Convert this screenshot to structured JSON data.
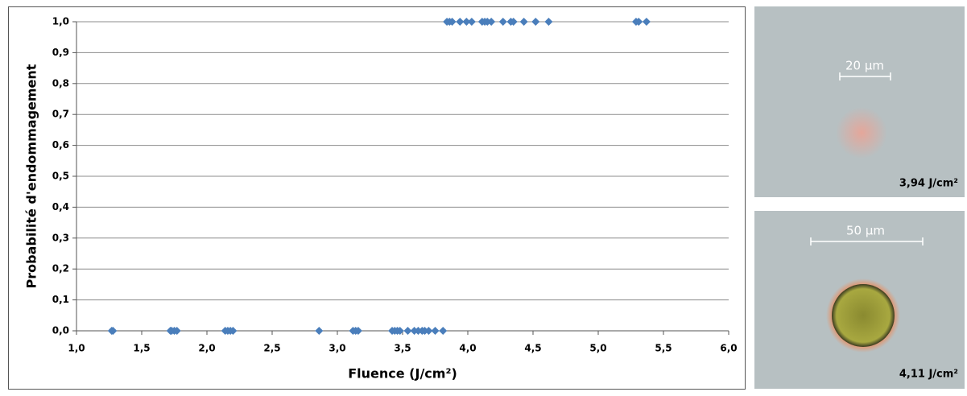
{
  "chart_data": {
    "type": "scatter",
    "x_label": "Fluence (J/cm²)",
    "y_label": "Probabilité d'endommagement",
    "x": [
      1.27,
      1.28,
      1.72,
      1.73,
      1.75,
      1.77,
      2.14,
      2.16,
      2.18,
      2.2,
      2.86,
      3.12,
      3.14,
      3.16,
      3.42,
      3.44,
      3.46,
      3.48,
      3.54,
      3.59,
      3.62,
      3.65,
      3.67,
      3.7,
      3.75,
      3.81,
      3.84,
      3.86,
      3.88,
      3.94,
      3.99,
      4.03,
      4.11,
      4.13,
      4.15,
      4.18,
      4.27,
      4.33,
      4.35,
      4.43,
      4.52,
      4.62,
      5.29,
      5.31,
      5.37
    ],
    "values": [
      0,
      0,
      0,
      0,
      0,
      0,
      0,
      0,
      0,
      0,
      0,
      0,
      0,
      0,
      0,
      0,
      0,
      0,
      0,
      0,
      0,
      0,
      0,
      0,
      0,
      0,
      1,
      1,
      1,
      1,
      1,
      1,
      1,
      1,
      1,
      1,
      1,
      1,
      1,
      1,
      1,
      1,
      1,
      1,
      1
    ],
    "color": "#4a7ebb",
    "xlim": [
      1,
      6
    ],
    "ylim": [
      0,
      1
    ],
    "xticks": [
      {
        "value": 1,
        "label": "1,0"
      },
      {
        "value": 1.5,
        "label": "1,5"
      },
      {
        "value": 2,
        "label": "2,0"
      },
      {
        "value": 2.5,
        "label": "2,5"
      },
      {
        "value": 3,
        "label": "3,0"
      },
      {
        "value": 3.5,
        "label": "3,5"
      },
      {
        "value": 4,
        "label": "4,0"
      },
      {
        "value": 4.5,
        "label": "4,5"
      },
      {
        "value": 5,
        "label": "5,0"
      },
      {
        "value": 5.5,
        "label": "5,5"
      },
      {
        "value": 6,
        "label": "6,0"
      }
    ],
    "yticks": [
      {
        "value": 0,
        "label": "0,0"
      },
      {
        "value": 0.1,
        "label": "0,1"
      },
      {
        "value": 0.2,
        "label": "0,2"
      },
      {
        "value": 0.3,
        "label": "0,3"
      },
      {
        "value": 0.4,
        "label": "0,4"
      },
      {
        "value": 0.5,
        "label": "0,5"
      },
      {
        "value": 0.6,
        "label": "0,6"
      },
      {
        "value": 0.7,
        "label": "0,7"
      },
      {
        "value": 0.8,
        "label": "0,8"
      },
      {
        "value": 0.9,
        "label": "0,9"
      },
      {
        "value": 1,
        "label": "1,0"
      }
    ],
    "grid": true
  },
  "micrographs": [
    {
      "scale_bar": "20 µm",
      "fluence": "3,94 J/cm²"
    },
    {
      "scale_bar": "50 µm",
      "fluence": "4,11 J/cm²"
    }
  ]
}
